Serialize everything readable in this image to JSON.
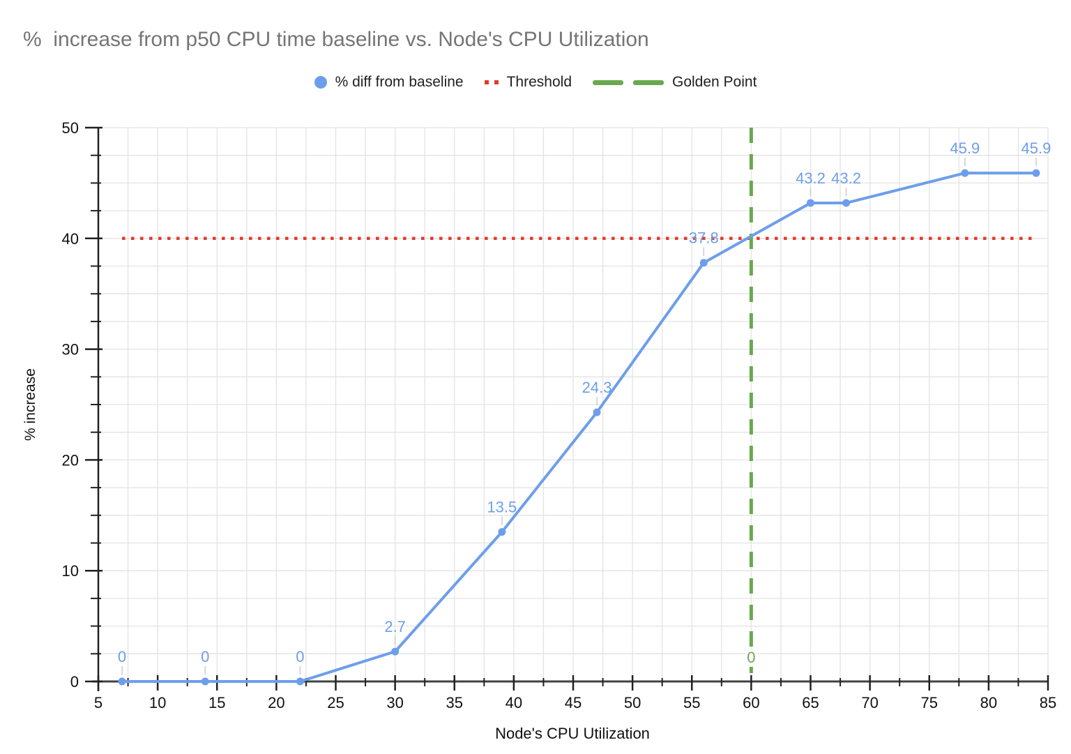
{
  "chart_data": {
    "type": "line",
    "title": "%  increase from p50 CPU time baseline vs. Node's CPU Utilization",
    "xlabel": "Node's CPU Utilization",
    "ylabel": "% increase",
    "xlim": [
      5,
      85
    ],
    "ylim": [
      0,
      50
    ],
    "x_major_tick_step": 5,
    "y_major_tick_step": 10,
    "minor_tick_step": 2.5,
    "grid": "on",
    "legend_position": "top-center",
    "legend": [
      {
        "label": "% diff from baseline",
        "marker": "circle",
        "color": "#6d9eeb"
      },
      {
        "label": "Threshold",
        "marker": "dotted-line",
        "color": "#e23b2e"
      },
      {
        "label": "Golden Point",
        "marker": "dashed-line",
        "color": "#6aa84f"
      }
    ],
    "series": [
      {
        "name": "% diff from baseline",
        "type": "line-with-points",
        "color": "#6d9eeb",
        "x": [
          7,
          14,
          22,
          30,
          39,
          47,
          56,
          65,
          68,
          78,
          84
        ],
        "y": [
          0,
          0,
          0,
          2.7,
          13.5,
          24.3,
          37.8,
          43.2,
          43.2,
          45.9,
          45.9
        ],
        "point_labels": [
          "0",
          "0",
          "0",
          "2.7",
          "13.5",
          "24.3",
          "37.8",
          "43.2",
          "43.2",
          "45.9",
          "45.9"
        ]
      },
      {
        "name": "Threshold",
        "type": "horizontal-dotted-line",
        "color": "#e23b2e",
        "y": 40,
        "x_start": 7,
        "x_end": 84
      },
      {
        "name": "Golden Point",
        "type": "vertical-dashed-line",
        "color": "#6aa84f",
        "x": 60,
        "point_label": "0"
      }
    ],
    "axis_tick_labels": {
      "x": [
        "5",
        "10",
        "15",
        "20",
        "25",
        "30",
        "35",
        "40",
        "45",
        "50",
        "55",
        "60",
        "65",
        "70",
        "75",
        "80",
        "85"
      ],
      "y": [
        "0",
        "10",
        "20",
        "30",
        "40",
        "50"
      ]
    },
    "colors": {
      "background": "#ffffff",
      "title_text": "#757575",
      "axis_text": "#111111",
      "grid_line": "#e3e3e3",
      "x_axis_line": "#424242",
      "y_axis_line": "#212121",
      "series_blue": "#6d9eeb",
      "threshold_red": "#e23b2e",
      "golden_green": "#6aa84f",
      "label_leader": "#cccccc"
    }
  }
}
